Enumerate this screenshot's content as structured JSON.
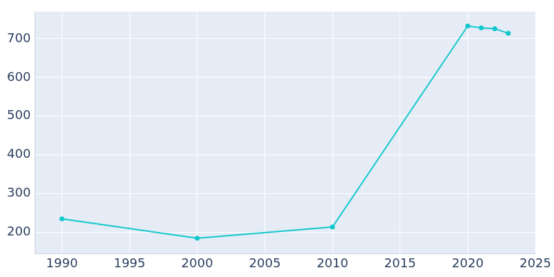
{
  "chart_data": {
    "type": "line",
    "x": [
      1990,
      2000,
      2010,
      2020,
      2021,
      2022,
      2023
    ],
    "values": [
      235,
      185,
      214,
      733,
      728,
      726,
      714
    ],
    "color": "#12c8cc",
    "marker": "circle",
    "xlim": [
      1988,
      2025
    ],
    "xticks": [
      1990,
      1995,
      2000,
      2005,
      2010,
      2015,
      2020,
      2025
    ],
    "ylim": [
      145,
      770
    ],
    "yticks": [
      200,
      300,
      400,
      500,
      600,
      700
    ],
    "grid": true
  }
}
